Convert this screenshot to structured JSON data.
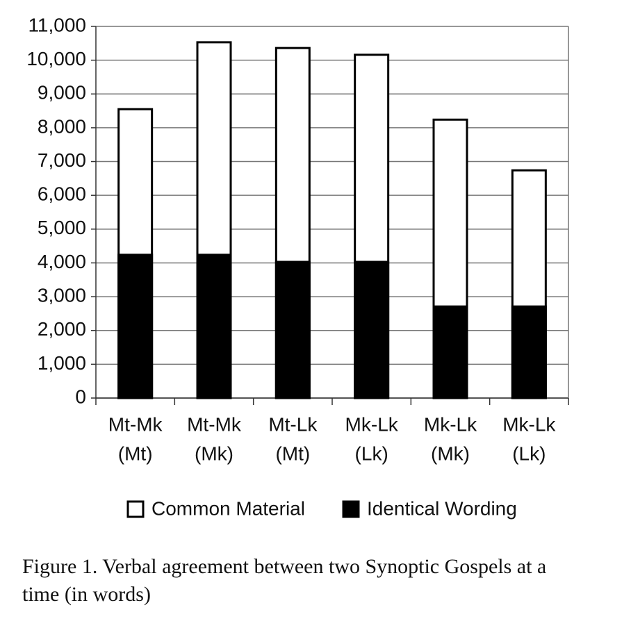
{
  "chart_data": {
    "type": "overlap-bar",
    "categories": [
      [
        "Mt-Mk",
        "(Mt)"
      ],
      [
        "Mt-Mk",
        "(Mk)"
      ],
      [
        "Mt-Lk",
        "(Mt)"
      ],
      [
        "Mk-Lk",
        "(Lk)"
      ],
      [
        "Mk-Lk",
        "(Mk)"
      ],
      [
        "Mk-Lk",
        "(Lk)"
      ]
    ],
    "series": [
      {
        "name": "Common Material",
        "color": "#ffffff",
        "values": [
          8550,
          10530,
          10360,
          10160,
          8240,
          6740
        ]
      },
      {
        "name": "Identical Wording",
        "color": "#000000",
        "values": [
          4240,
          4240,
          4030,
          4030,
          2710,
          2710
        ]
      }
    ],
    "ylim": [
      0,
      11000
    ],
    "yticks": [
      0,
      {
        "value": 1000,
        "label": "1,000"
      },
      {
        "value": 2000,
        "label": "2,000"
      },
      {
        "value": 3000,
        "label": "3,000"
      },
      {
        "value": 4000,
        "label": "4,000"
      },
      {
        "value": 5000,
        "label": "5,000"
      },
      {
        "value": 6000,
        "label": "6,000"
      },
      {
        "value": 7000,
        "label": "7,000"
      },
      {
        "value": 8000,
        "label": "8,000"
      },
      {
        "value": 9000,
        "label": "9,000"
      },
      {
        "value": 10000,
        "label": "10,000"
      },
      {
        "value": 11000,
        "label": "11,000"
      }
    ],
    "grid": true,
    "legend": "bottom",
    "caption": "Figure 1. Verbal agreement between two Synoptic Gospels at a time (in words)"
  }
}
